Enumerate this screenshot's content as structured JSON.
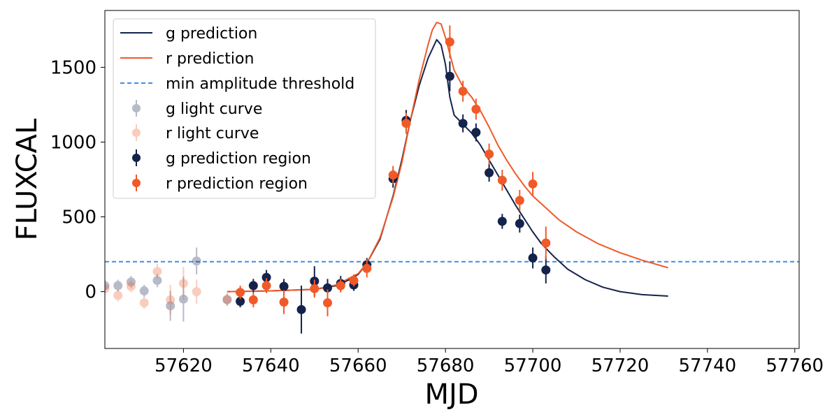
{
  "chart_data": {
    "type": "scatter",
    "title": "",
    "xlabel": "MJD",
    "ylabel": "FLUXCAL",
    "xlim": [
      57602,
      57761
    ],
    "ylim": [
      -380,
      1880
    ],
    "xticks": [
      57620,
      57640,
      57660,
      57680,
      57700,
      57720,
      57740,
      57760
    ],
    "yticks": [
      0,
      500,
      1000,
      1500
    ],
    "grid": false,
    "legend_position": "top-left",
    "threshold": {
      "name": "min amplitude threshold",
      "value": 200,
      "color": "#3b8ee8"
    },
    "lines": [
      {
        "name": "g prediction",
        "color": "#14234b",
        "x": [
          57630,
          57640,
          57650,
          57655,
          57658,
          57660,
          57662,
          57665,
          57668,
          57670,
          57672,
          57674,
          57676,
          57678,
          57679,
          57680,
          57681,
          57682,
          57684,
          57686,
          57688,
          57690,
          57692,
          57694,
          57696,
          57698,
          57700,
          57702,
          57705,
          57708,
          57712,
          57716,
          57720,
          57725,
          57731
        ],
        "y": [
          0,
          5,
          15,
          40,
          80,
          115,
          190,
          350,
          640,
          880,
          1150,
          1380,
          1560,
          1685,
          1650,
          1520,
          1300,
          1180,
          1120,
          1060,
          980,
          880,
          780,
          680,
          580,
          490,
          400,
          320,
          230,
          150,
          80,
          30,
          0,
          -20,
          -30
        ]
      },
      {
        "name": "r prediction",
        "color": "#f05a28",
        "x": [
          57630,
          57640,
          57650,
          57655,
          57658,
          57660,
          57662,
          57665,
          57668,
          57670,
          57672,
          57674,
          57676,
          57677,
          57678,
          57679,
          57680,
          57682,
          57684,
          57686,
          57688,
          57690,
          57692,
          57694,
          57696,
          57698,
          57700,
          57703,
          57706,
          57710,
          57715,
          57720,
          57725,
          57731
        ],
        "y": [
          0,
          5,
          15,
          45,
          90,
          120,
          190,
          360,
          630,
          860,
          1150,
          1420,
          1650,
          1750,
          1800,
          1790,
          1700,
          1480,
          1370,
          1300,
          1210,
          1100,
          980,
          880,
          790,
          710,
          640,
          560,
          480,
          400,
          320,
          260,
          210,
          160
        ]
      }
    ],
    "series": [
      {
        "name": "g light curve",
        "color": "#14234b",
        "opacity": 0.3,
        "points": [
          {
            "x": 57602,
            "y": 40,
            "err": 40
          },
          {
            "x": 57605,
            "y": 40,
            "err": 40
          },
          {
            "x": 57608,
            "y": 65,
            "err": 40
          },
          {
            "x": 57611,
            "y": 5,
            "err": 40
          },
          {
            "x": 57614,
            "y": 75,
            "err": 45
          },
          {
            "x": 57617,
            "y": -95,
            "err": 100
          },
          {
            "x": 57620,
            "y": -50,
            "err": 150
          },
          {
            "x": 57623,
            "y": 205,
            "err": 90
          },
          {
            "x": 57630,
            "y": -55,
            "err": 40
          }
        ]
      },
      {
        "name": "r light curve",
        "color": "#f05a28",
        "opacity": 0.3,
        "points": [
          {
            "x": 57602,
            "y": 20,
            "err": 40
          },
          {
            "x": 57605,
            "y": -25,
            "err": 40
          },
          {
            "x": 57608,
            "y": 35,
            "err": 40
          },
          {
            "x": 57611,
            "y": -75,
            "err": 40
          },
          {
            "x": 57614,
            "y": 135,
            "err": 50
          },
          {
            "x": 57617,
            "y": -55,
            "err": 100
          },
          {
            "x": 57620,
            "y": 55,
            "err": 110
          },
          {
            "x": 57623,
            "y": 0,
            "err": 80
          },
          {
            "x": 57630,
            "y": -50,
            "err": 40
          }
        ]
      },
      {
        "name": "g  prediction region",
        "color": "#14234b",
        "opacity": 1,
        "points": [
          {
            "x": 57633,
            "y": -65,
            "err": 40
          },
          {
            "x": 57636,
            "y": 40,
            "err": 45
          },
          {
            "x": 57639,
            "y": 95,
            "err": 50
          },
          {
            "x": 57643,
            "y": 35,
            "err": 50
          },
          {
            "x": 57647,
            "y": -120,
            "err": 160
          },
          {
            "x": 57650,
            "y": 70,
            "err": 100
          },
          {
            "x": 57653,
            "y": 25,
            "err": 60
          },
          {
            "x": 57656,
            "y": 55,
            "err": 50
          },
          {
            "x": 57659,
            "y": 45,
            "err": 40
          },
          {
            "x": 57662,
            "y": 180,
            "err": 45
          },
          {
            "x": 57668,
            "y": 755,
            "err": 60
          },
          {
            "x": 57671,
            "y": 1145,
            "err": 70
          },
          {
            "x": 57681,
            "y": 1440,
            "err": 100
          },
          {
            "x": 57684,
            "y": 1125,
            "err": 60
          },
          {
            "x": 57687,
            "y": 1065,
            "err": 60
          },
          {
            "x": 57690,
            "y": 795,
            "err": 60
          },
          {
            "x": 57693,
            "y": 470,
            "err": 50
          },
          {
            "x": 57697,
            "y": 455,
            "err": 60
          },
          {
            "x": 57700,
            "y": 225,
            "err": 70
          },
          {
            "x": 57703,
            "y": 145,
            "err": 90
          }
        ]
      },
      {
        "name": "r  prediction region",
        "color": "#f05a28",
        "opacity": 1,
        "points": [
          {
            "x": 57633,
            "y": -5,
            "err": 45
          },
          {
            "x": 57636,
            "y": -55,
            "err": 50
          },
          {
            "x": 57639,
            "y": 40,
            "err": 50
          },
          {
            "x": 57643,
            "y": -70,
            "err": 80
          },
          {
            "x": 57650,
            "y": 20,
            "err": 60
          },
          {
            "x": 57653,
            "y": -75,
            "err": 90
          },
          {
            "x": 57656,
            "y": 40,
            "err": 45
          },
          {
            "x": 57659,
            "y": 75,
            "err": 40
          },
          {
            "x": 57662,
            "y": 155,
            "err": 60
          },
          {
            "x": 57668,
            "y": 780,
            "err": 60
          },
          {
            "x": 57671,
            "y": 1125,
            "err": 70
          },
          {
            "x": 57681,
            "y": 1670,
            "err": 110
          },
          {
            "x": 57684,
            "y": 1340,
            "err": 70
          },
          {
            "x": 57687,
            "y": 1220,
            "err": 70
          },
          {
            "x": 57690,
            "y": 920,
            "err": 70
          },
          {
            "x": 57693,
            "y": 745,
            "err": 70
          },
          {
            "x": 57697,
            "y": 610,
            "err": 70
          },
          {
            "x": 57700,
            "y": 720,
            "err": 80
          },
          {
            "x": 57703,
            "y": 325,
            "err": 110
          }
        ]
      }
    ]
  },
  "legend": {
    "g_prediction": "g prediction",
    "r_prediction": "r prediction",
    "threshold": "min amplitude threshold",
    "g_light_curve": "g light curve",
    "r_light_curve": "r light curve",
    "g_region": "g  prediction region",
    "r_region": "r  prediction region"
  }
}
